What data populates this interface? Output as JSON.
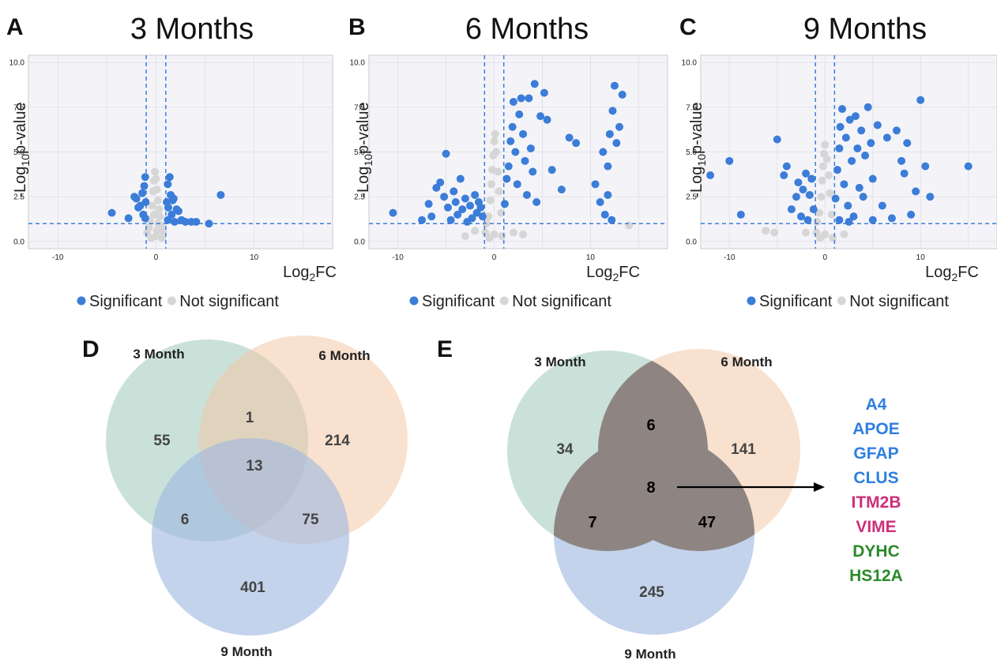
{
  "panels": {
    "A": "A",
    "B": "B",
    "C": "C",
    "D": "D",
    "E": "E"
  },
  "colors": {
    "significant": "#3b7dd8",
    "not_significant": "#d6d6d6",
    "threshold_line": "#3b7dd8",
    "panel_bg": "#f4f4f8",
    "grid": "#e2e2ea",
    "venn_3": "#9fc8bb",
    "venn_6": "#f2c9a6",
    "venn_9": "#9fb8e0",
    "venn_core": "#8e8582"
  },
  "chart_data": [
    {
      "type": "scatter",
      "title": "3 Months",
      "xlabel": "Log2FC",
      "ylabel": "-Log10p-value",
      "xlim": [
        -13,
        18
      ],
      "ylim": [
        -0.4,
        10.4
      ],
      "xticks": [
        -10,
        0,
        10
      ],
      "yticks": [
        "0.0",
        "2.5",
        "5.0",
        "7.5",
        "10.0"
      ],
      "thresholds": {
        "x": [
          -1,
          1
        ],
        "y": 1
      },
      "legend": [
        "Significant",
        "Not significant"
      ],
      "series": [
        {
          "name": "Significant",
          "points": [
            [
              -4.5,
              1.6
            ],
            [
              -2.8,
              1.3
            ],
            [
              -2.2,
              2.5
            ],
            [
              -2,
              2.4
            ],
            [
              -1.8,
              1.9
            ],
            [
              -1.6,
              2.0
            ],
            [
              -1.4,
              2.7
            ],
            [
              -1.3,
              1.5
            ],
            [
              -1.2,
              3.1
            ],
            [
              -1.1,
              3.6
            ],
            [
              -1.05,
              2.2
            ],
            [
              1.1,
              2.2
            ],
            [
              1.2,
              3.2
            ],
            [
              1.25,
              1.9
            ],
            [
              1.4,
              3.6
            ],
            [
              1.5,
              2.6
            ],
            [
              1.6,
              1.5
            ],
            [
              1.7,
              2.3
            ],
            [
              1.8,
              2.4
            ],
            [
              1.9,
              1.1
            ],
            [
              2.1,
              1.8
            ],
            [
              2.3,
              1.7
            ],
            [
              2.6,
              1.2
            ],
            [
              3,
              1.1
            ],
            [
              3.6,
              1.1
            ],
            [
              4.1,
              1.1
            ],
            [
              5.4,
              1.0
            ],
            [
              6.6,
              2.6
            ],
            [
              -1.1,
              1.3
            ],
            [
              1.2,
              1.2
            ]
          ]
        },
        {
          "name": "Not significant",
          "points": [
            [
              -0.9,
              0.5
            ],
            [
              -0.6,
              1.2
            ],
            [
              -0.4,
              2.0
            ],
            [
              -0.3,
              2.8
            ],
            [
              -0.2,
              3.4
            ],
            [
              -0.1,
              3.9
            ],
            [
              0,
              3.5
            ],
            [
              0.1,
              2.9
            ],
            [
              0.2,
              2.3
            ],
            [
              0.3,
              1.8
            ],
            [
              0.4,
              1.4
            ],
            [
              0.5,
              0.9
            ],
            [
              0.7,
              0.6
            ],
            [
              -0.7,
              0.8
            ],
            [
              0,
              0.3
            ],
            [
              0.2,
              1.0
            ],
            [
              -0.2,
              1.5
            ],
            [
              0.6,
              0.2
            ],
            [
              -0.5,
              0.2
            ],
            [
              0.1,
              0.6
            ]
          ]
        }
      ]
    },
    {
      "type": "scatter",
      "title": "6 Months",
      "xlabel": "Log2FC",
      "ylabel": "-Log10p-value",
      "xlim": [
        -13,
        18
      ],
      "ylim": [
        -0.4,
        10.4
      ],
      "xticks": [
        -10,
        0,
        10
      ],
      "yticks": [
        "0.0",
        "2.5",
        "5.0",
        "7.5",
        "10.0"
      ],
      "thresholds": {
        "x": [
          -1,
          1
        ],
        "y": 1
      },
      "legend": [
        "Significant",
        "Not significant"
      ],
      "series": [
        {
          "name": "Significant",
          "points": [
            [
              -10.5,
              1.6
            ],
            [
              -7.5,
              1.2
            ],
            [
              -6.8,
              2.1
            ],
            [
              -6.5,
              1.4
            ],
            [
              -6,
              3.0
            ],
            [
              -5.6,
              3.3
            ],
            [
              -5.2,
              2.5
            ],
            [
              -5,
              4.9
            ],
            [
              -4.8,
              1.9
            ],
            [
              -4.5,
              1.2
            ],
            [
              -4.2,
              2.8
            ],
            [
              -4,
              2.2
            ],
            [
              -3.8,
              1.5
            ],
            [
              -3.5,
              3.5
            ],
            [
              -3.3,
              1.8
            ],
            [
              -3,
              2.4
            ],
            [
              -2.8,
              1.1
            ],
            [
              -2.5,
              2.0
            ],
            [
              -2.3,
              1.3
            ],
            [
              -2,
              2.6
            ],
            [
              -1.8,
              1.6
            ],
            [
              -1.6,
              2.2
            ],
            [
              -1.4,
              1.9
            ],
            [
              -1.2,
              1.4
            ],
            [
              1.1,
              2.1
            ],
            [
              1.3,
              3.5
            ],
            [
              1.5,
              4.2
            ],
            [
              1.7,
              5.6
            ],
            [
              1.9,
              6.4
            ],
            [
              2,
              7.8
            ],
            [
              2.2,
              5.0
            ],
            [
              2.4,
              3.2
            ],
            [
              2.6,
              7.1
            ],
            [
              2.8,
              8.0
            ],
            [
              3,
              6.0
            ],
            [
              3.2,
              4.5
            ],
            [
              3.4,
              2.6
            ],
            [
              3.6,
              8.0
            ],
            [
              3.8,
              5.2
            ],
            [
              4,
              3.9
            ],
            [
              4.2,
              8.8
            ],
            [
              4.4,
              2.2
            ],
            [
              4.8,
              7.0
            ],
            [
              5.2,
              8.3
            ],
            [
              5.5,
              6.8
            ],
            [
              6,
              4.0
            ],
            [
              7,
              2.9
            ],
            [
              7.8,
              5.8
            ],
            [
              8.5,
              5.5
            ],
            [
              10.5,
              3.2
            ],
            [
              11,
              2.2
            ],
            [
              11.3,
              5.0
            ],
            [
              11.5,
              1.5
            ],
            [
              11.8,
              4.2
            ],
            [
              12,
              6.0
            ],
            [
              12.3,
              7.3
            ],
            [
              12.5,
              8.7
            ],
            [
              12.7,
              5.5
            ],
            [
              13,
              6.4
            ],
            [
              13.3,
              8.2
            ],
            [
              12.2,
              1.2
            ],
            [
              11.8,
              2.6
            ]
          ]
        },
        {
          "name": "Not significant",
          "points": [
            [
              -0.9,
              0.5
            ],
            [
              -0.6,
              1.4
            ],
            [
              -0.4,
              2.3
            ],
            [
              -0.3,
              3.2
            ],
            [
              -0.2,
              4.0
            ],
            [
              -0.1,
              4.8
            ],
            [
              0,
              5.6
            ],
            [
              0.1,
              6.0
            ],
            [
              0.2,
              5.0
            ],
            [
              0.4,
              3.9
            ],
            [
              0.5,
              2.8
            ],
            [
              0.7,
              1.6
            ],
            [
              -0.8,
              1.0
            ],
            [
              0,
              0.4
            ],
            [
              -2,
              0.6
            ],
            [
              2,
              0.5
            ],
            [
              -0.5,
              0.2
            ],
            [
              0.8,
              0.3
            ],
            [
              14,
              0.9
            ],
            [
              3,
              0.4
            ],
            [
              -3,
              0.3
            ]
          ]
        }
      ]
    },
    {
      "type": "scatter",
      "title": "9 Months",
      "xlabel": "Log2FC",
      "ylabel": "-Log10p-value",
      "xlim": [
        -13,
        18
      ],
      "ylim": [
        -0.4,
        10.4
      ],
      "xticks": [
        -10,
        0,
        10
      ],
      "yticks": [
        "0.0",
        "2.5",
        "5.0",
        "7.5",
        "10.0"
      ],
      "thresholds": {
        "x": [
          -1,
          1
        ],
        "y": 1
      },
      "legend": [
        "Significant",
        "Not significant"
      ],
      "series": [
        {
          "name": "Significant",
          "points": [
            [
              -12,
              3.7
            ],
            [
              -10,
              4.5
            ],
            [
              -8.8,
              1.5
            ],
            [
              -5,
              5.7
            ],
            [
              -4.3,
              3.7
            ],
            [
              -4,
              4.2
            ],
            [
              -3.5,
              1.8
            ],
            [
              -3,
              2.5
            ],
            [
              -2.8,
              3.3
            ],
            [
              -2.5,
              1.4
            ],
            [
              -2.3,
              2.9
            ],
            [
              -2,
              3.8
            ],
            [
              -1.8,
              1.2
            ],
            [
              -1.6,
              2.6
            ],
            [
              -1.4,
              3.5
            ],
            [
              -1.2,
              1.8
            ],
            [
              1.1,
              2.4
            ],
            [
              1.3,
              4.0
            ],
            [
              1.5,
              5.2
            ],
            [
              1.6,
              6.4
            ],
            [
              1.8,
              7.4
            ],
            [
              2,
              3.2
            ],
            [
              2.2,
              5.8
            ],
            [
              2.4,
              2.0
            ],
            [
              2.6,
              6.8
            ],
            [
              2.8,
              4.5
            ],
            [
              3,
              1.4
            ],
            [
              3.2,
              7.0
            ],
            [
              3.4,
              5.2
            ],
            [
              3.6,
              3.0
            ],
            [
              3.8,
              6.2
            ],
            [
              4,
              2.5
            ],
            [
              4.2,
              4.8
            ],
            [
              4.5,
              7.5
            ],
            [
              4.8,
              5.5
            ],
            [
              5,
              3.5
            ],
            [
              5.5,
              6.5
            ],
            [
              6,
              2.0
            ],
            [
              6.5,
              5.8
            ],
            [
              7,
              1.3
            ],
            [
              7.5,
              6.2
            ],
            [
              8,
              4.5
            ],
            [
              8.3,
              3.8
            ],
            [
              8.6,
              5.5
            ],
            [
              9,
              1.5
            ],
            [
              9.5,
              2.8
            ],
            [
              10,
              7.9
            ],
            [
              10.5,
              4.2
            ],
            [
              11,
              2.5
            ],
            [
              15,
              4.2
            ],
            [
              1.5,
              1.2
            ],
            [
              2.5,
              1.1
            ],
            [
              5,
              1.2
            ]
          ]
        },
        {
          "name": "Not significant",
          "points": [
            [
              -0.9,
              0.5
            ],
            [
              -0.6,
              1.6
            ],
            [
              -0.4,
              2.5
            ],
            [
              -0.3,
              3.4
            ],
            [
              -0.2,
              4.2
            ],
            [
              -0.1,
              4.9
            ],
            [
              0,
              5.4
            ],
            [
              0.2,
              4.6
            ],
            [
              0.4,
              3.7
            ],
            [
              0.5,
              2.7
            ],
            [
              0.7,
              1.5
            ],
            [
              -0.8,
              1.1
            ],
            [
              0,
              0.4
            ],
            [
              -6.2,
              0.6
            ],
            [
              -5.3,
              0.5
            ],
            [
              -2,
              0.5
            ],
            [
              2,
              0.4
            ],
            [
              0.8,
              0.2
            ],
            [
              -0.5,
              0.2
            ]
          ]
        }
      ]
    }
  ],
  "venn_d": {
    "labels": {
      "a": "3 Month",
      "b": "6 Month",
      "c": "9 Month"
    },
    "counts": {
      "a_only": "55",
      "b_only": "214",
      "c_only": "401",
      "ab": "1",
      "ac": "6",
      "bc": "75",
      "abc": "13"
    }
  },
  "venn_e": {
    "labels": {
      "a": "3 Month",
      "b": "6 Month",
      "c": "9 Month"
    },
    "counts": {
      "a_only": "34",
      "b_only": "141",
      "c_only": "245",
      "ab": "6",
      "ac": "7",
      "bc": "47",
      "abc": "8"
    },
    "genes": [
      {
        "name": "A4",
        "color": "#2f7fe0"
      },
      {
        "name": "APOE",
        "color": "#2f7fe0"
      },
      {
        "name": "GFAP",
        "color": "#2f7fe0"
      },
      {
        "name": "CLUS",
        "color": "#2f7fe0"
      },
      {
        "name": "ITM2B",
        "color": "#cc2f7a"
      },
      {
        "name": "VIME",
        "color": "#cc2f7a"
      },
      {
        "name": "DYHC",
        "color": "#2a8a2a"
      },
      {
        "name": "HS12A",
        "color": "#2a8a2a"
      }
    ]
  }
}
